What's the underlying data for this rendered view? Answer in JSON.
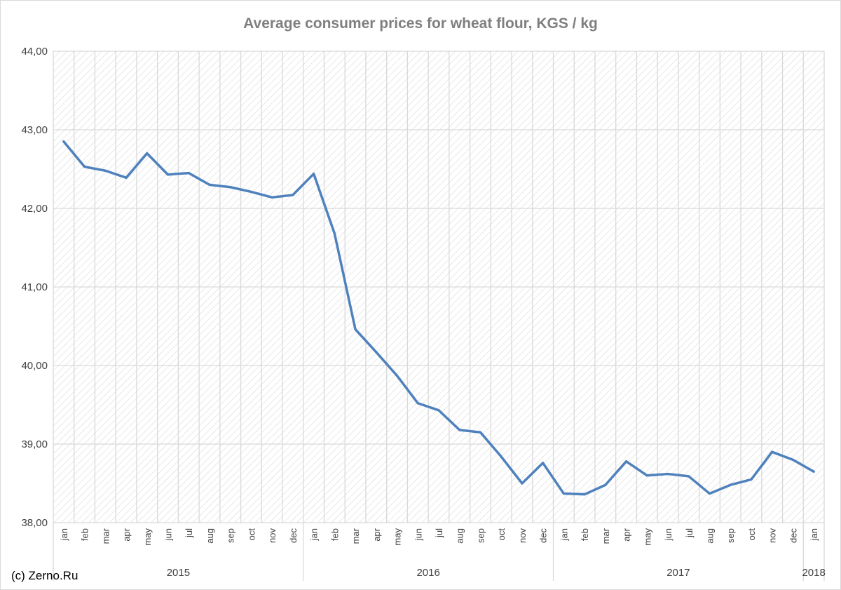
{
  "chart_data": {
    "type": "line",
    "title": "Average consumer prices for wheat flour, KGS / kg",
    "xlabel": "",
    "ylabel": "",
    "ylim": [
      38,
      44
    ],
    "y_ticks": [
      "38,00",
      "39,00",
      "40,00",
      "41,00",
      "42,00",
      "43,00",
      "44,00"
    ],
    "grid": true,
    "legend": "none",
    "year_groups": [
      {
        "label": "2015",
        "months": 12
      },
      {
        "label": "2016",
        "months": 12
      },
      {
        "label": "2017",
        "months": 12
      },
      {
        "label": "2018",
        "months": 1
      }
    ],
    "categories": [
      "jan",
      "feb",
      "mar",
      "apr",
      "may",
      "jun",
      "jul",
      "aug",
      "sep",
      "oct",
      "nov",
      "dec",
      "jan",
      "feb",
      "mar",
      "apr",
      "may",
      "jun",
      "jul",
      "aug",
      "sep",
      "oct",
      "nov",
      "dec",
      "jan",
      "feb",
      "mar",
      "apr",
      "may",
      "jun",
      "jul",
      "aug",
      "sep",
      "oct",
      "nov",
      "dec",
      "jan"
    ],
    "series": [
      {
        "values": [
          42.85,
          42.53,
          42.48,
          42.39,
          42.7,
          42.43,
          42.45,
          42.3,
          42.27,
          42.21,
          42.14,
          42.17,
          42.44,
          41.68,
          40.46,
          40.17,
          39.87,
          39.52,
          39.43,
          39.18,
          39.15,
          38.84,
          38.5,
          38.76,
          38.37,
          38.36,
          38.48,
          38.78,
          38.6,
          38.62,
          38.59,
          38.37,
          38.48,
          38.55,
          38.9,
          38.8,
          38.65
        ],
        "color": "#4f81bd"
      }
    ]
  },
  "credit": "(c) Zerno.Ru",
  "colors": {
    "line": "#4f81bd",
    "grid": "#d9d9d9",
    "hatch": "#d9d9d9",
    "axis_text": "#404040",
    "title": "#7f7f7f"
  }
}
